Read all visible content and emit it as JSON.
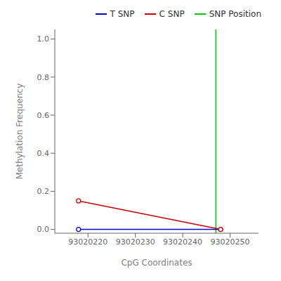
{
  "chart_data": {
    "type": "line",
    "xlabel": "CpG Coordinates",
    "ylabel": "Methylation Frequency",
    "x": [
      93020218,
      93020248
    ],
    "series": [
      {
        "name": "T SNP",
        "color": "#0000cc",
        "values": [
          0.0,
          0.0
        ],
        "marker": "circle"
      },
      {
        "name": "C SNP",
        "color": "#cc0000",
        "values": [
          0.15,
          0.0
        ],
        "marker": "circle"
      }
    ],
    "vline": {
      "name": "SNP Position",
      "x": 93020247,
      "color": "#00cc00"
    },
    "xlim": [
      93020213,
      93020256
    ],
    "xticks": [
      93020220,
      93020230,
      93020240,
      93020250
    ],
    "ylim": [
      -0.02,
      1.05
    ],
    "yticks": [
      {
        "value": 0,
        "label": "0.0"
      },
      0.2,
      0.4,
      0.6,
      0.8,
      {
        "value": 1,
        "label": "1.0"
      }
    ],
    "grid": false,
    "legend": "upper right"
  }
}
